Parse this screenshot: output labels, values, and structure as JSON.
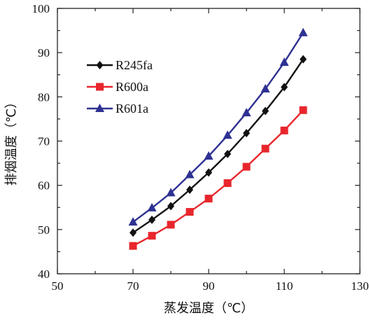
{
  "chart_data": {
    "type": "line",
    "xlabel": "蒸发温度（℃）",
    "ylabel": "排烟温度（℃）",
    "xlim": [
      50,
      130
    ],
    "ylim": [
      40,
      100
    ],
    "xticks": [
      "50",
      "70",
      "90",
      "110",
      "130"
    ],
    "yticks": [
      "40",
      "50",
      "60",
      "70",
      "80",
      "90",
      "100"
    ],
    "legend_position": "upper-left",
    "grid": false,
    "x": [
      70,
      75,
      80,
      85,
      90,
      95,
      100,
      105,
      110,
      115
    ],
    "series": [
      {
        "name": "R245fa",
        "color": "#111111",
        "marker": "diamond",
        "values": [
          49.3,
          52.2,
          55.3,
          59.0,
          62.9,
          67.1,
          71.8,
          76.8,
          82.2,
          88.5
        ]
      },
      {
        "name": "R600a",
        "color": "#e8262c",
        "marker": "square",
        "values": [
          46.3,
          48.6,
          51.1,
          54.0,
          57.0,
          60.5,
          64.2,
          68.3,
          72.4,
          77.0
        ]
      },
      {
        "name": "R601a",
        "color": "#2e3192",
        "marker": "triangle",
        "values": [
          51.7,
          54.9,
          58.3,
          62.4,
          66.6,
          71.3,
          76.4,
          81.8,
          87.8,
          94.5
        ]
      }
    ]
  }
}
